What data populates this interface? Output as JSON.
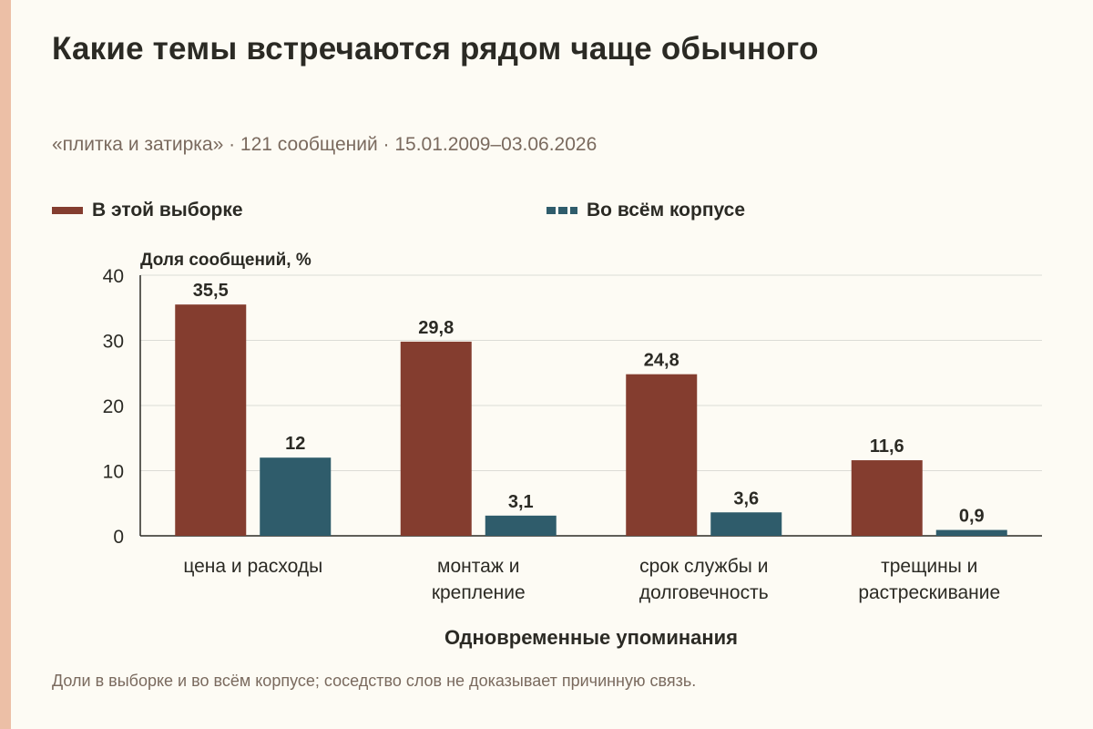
{
  "header": {
    "title": "Какие темы встречаются рядом чаще обычного",
    "subtitle": "«плитка и затирка» · 121 сообщений · 15.01.2009–03.06.2026"
  },
  "footnote": "Доли в выборке и во всём корпусе; соседство слов не доказывает причинную связь.",
  "colors": {
    "sample": "#843d2f",
    "corpus": "#2f5c6b",
    "background": "#fdfbf4",
    "accent_stripe": "#ecbfa6"
  },
  "chart_data": {
    "type": "bar",
    "title": "Какие темы встречаются рядом чаще обычного",
    "xlabel": "Одновременные упоминания",
    "ylabel": "Доля сообщений, %",
    "ylim": [
      0,
      40
    ],
    "yticks": [
      0,
      10,
      20,
      30,
      40
    ],
    "grid": true,
    "legend_position": "top",
    "categories": [
      [
        "цена и расходы"
      ],
      [
        "монтаж и",
        "крепление"
      ],
      [
        "срок службы и",
        "долговечность"
      ],
      [
        "трещины и",
        "растрескивание"
      ]
    ],
    "series": [
      {
        "name": "В этой выборке",
        "values": [
          35.5,
          29.8,
          24.8,
          11.6
        ],
        "labels": [
          "35,5",
          "29,8",
          "24,8",
          "11,6"
        ]
      },
      {
        "name": "Во всём корпусе",
        "values": [
          12,
          3.1,
          3.6,
          0.9
        ],
        "labels": [
          "12",
          "3,1",
          "3,6",
          "0,9"
        ]
      }
    ]
  }
}
